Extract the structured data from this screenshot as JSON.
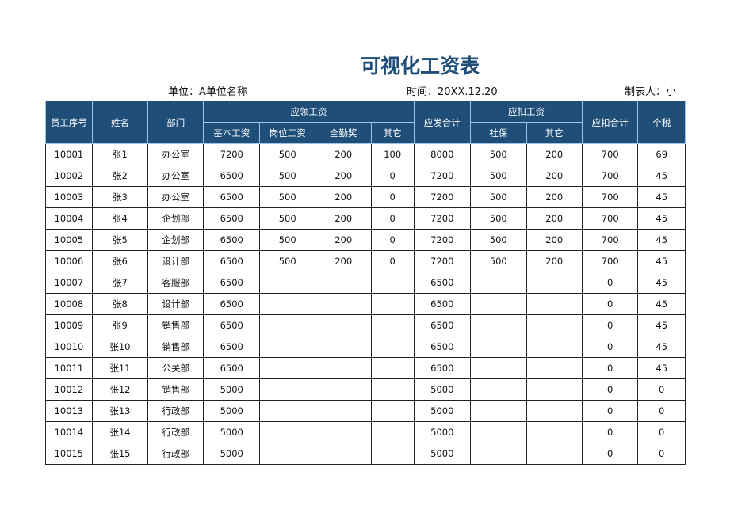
{
  "title": "可视化工资表",
  "unit": "单位：A单位名称",
  "time": "时间：20XX.12.20",
  "maker": "制表人：小",
  "headers": {
    "id": "员工序号",
    "name": "姓名",
    "dept": "部门",
    "payable": "应领工资",
    "base": "基本工资",
    "post": "岗位工资",
    "attendance": "全勤奖",
    "other": "其它",
    "gross": "应发合计",
    "deduct": "应扣工资",
    "social": "社保",
    "other2": "其它",
    "deduct_total": "应扣合计",
    "tax": "个税"
  },
  "rows": [
    [
      "10001",
      "张1",
      "办公室",
      "7200",
      "500",
      "200",
      "100",
      "8000",
      "500",
      "200",
      "700",
      "69"
    ],
    [
      "10002",
      "张2",
      "办公室",
      "6500",
      "500",
      "200",
      "0",
      "7200",
      "500",
      "200",
      "700",
      "45"
    ],
    [
      "10003",
      "张3",
      "办公室",
      "6500",
      "500",
      "200",
      "0",
      "7200",
      "500",
      "200",
      "700",
      "45"
    ],
    [
      "10004",
      "张4",
      "企划部",
      "6500",
      "500",
      "200",
      "0",
      "7200",
      "500",
      "200",
      "700",
      "45"
    ],
    [
      "10005",
      "张5",
      "企划部",
      "6500",
      "500",
      "200",
      "0",
      "7200",
      "500",
      "200",
      "700",
      "45"
    ],
    [
      "10006",
      "张6",
      "设计部",
      "6500",
      "500",
      "200",
      "0",
      "7200",
      "500",
      "200",
      "700",
      "45"
    ],
    [
      "10007",
      "张7",
      "客服部",
      "6500",
      "",
      "",
      "",
      "6500",
      "",
      "",
      "0",
      "45"
    ],
    [
      "10008",
      "张8",
      "设计部",
      "6500",
      "",
      "",
      "",
      "6500",
      "",
      "",
      "0",
      "45"
    ],
    [
      "10009",
      "张9",
      "销售部",
      "6500",
      "",
      "",
      "",
      "6500",
      "",
      "",
      "0",
      "45"
    ],
    [
      "10010",
      "张10",
      "销售部",
      "6500",
      "",
      "",
      "",
      "6500",
      "",
      "",
      "0",
      "45"
    ],
    [
      "10011",
      "张11",
      "公关部",
      "6500",
      "",
      "",
      "",
      "6500",
      "",
      "",
      "0",
      "45"
    ],
    [
      "10012",
      "张12",
      "销售部",
      "5000",
      "",
      "",
      "",
      "5000",
      "",
      "",
      "0",
      "0"
    ],
    [
      "10013",
      "张13",
      "行政部",
      "5000",
      "",
      "",
      "",
      "5000",
      "",
      "",
      "0",
      "0"
    ],
    [
      "10014",
      "张14",
      "行政部",
      "5000",
      "",
      "",
      "",
      "5000",
      "",
      "",
      "0",
      "0"
    ],
    [
      "10015",
      "张15",
      "行政部",
      "5000",
      "",
      "",
      "",
      "5000",
      "",
      "",
      "0",
      "0"
    ]
  ]
}
